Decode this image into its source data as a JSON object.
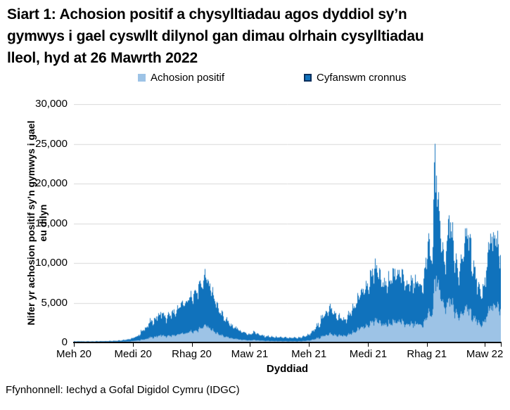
{
  "title": "Siart 1: Achosion positif a chysylltiadau agos dyddiol sy’n gymwys i gael cyswllt dilynol gan dimau olrhain cysylltiadau lleol, hyd at 26 Mawrth 2022",
  "title_lines": [
    "Siart 1: Achosion positif a chysylltiadau agos dyddiol sy’n",
    "gymwys i gael cyswllt dilynol gan dimau olrhain cysylltiadau",
    "lleol, hyd at 26 Mawrth 2022"
  ],
  "source": "Ffynhonnell: Iechyd a Gofal Digidol Cymru (IDGC)",
  "chart_data": {
    "type": "area",
    "title": "Siart 1: Achosion positif a chysylltiadau agos dyddiol sy’n gymwys i gael cyswllt dilynol gan dimau olrhain cysylltiadau lleol, hyd at 26 Mawrth 2022",
    "xlabel": "Dyddiad",
    "ylabel": "Nifer yr achosion positif sy’n gymwys i gael eu dilyn",
    "ylabel_lines": [
      "Nifer yr achosion positif sy’n gymwys i gael",
      "eu dilyn"
    ],
    "ylim": [
      0,
      30000
    ],
    "ytick_step": 5000,
    "yticks": [
      "0",
      "5,000",
      "10,000",
      "15,000",
      "20,000",
      "25,000",
      "30,000"
    ],
    "grid": true,
    "grid_color": "#D9D9D9",
    "axis_color": "#000000",
    "legend_position": "top",
    "total_days": 663,
    "x_start": "Meh 20",
    "x_end": "26 Mawrth 2022",
    "xticks": [
      {
        "label": "Meh 20",
        "day": 0
      },
      {
        "label": "Medi 20",
        "day": 92
      },
      {
        "label": "Rhag 20",
        "day": 183
      },
      {
        "label": "Maw 21",
        "day": 273
      },
      {
        "label": "Meh 21",
        "day": 365
      },
      {
        "label": "Medi 21",
        "day": 457
      },
      {
        "label": "Rhag 21",
        "day": 548
      },
      {
        "label": "Maw 22",
        "day": 638
      },
      {
        "label": "",
        "day": 663
      }
    ],
    "series": [
      {
        "name": "Cyfanswm cronnus",
        "color": "#1072BC",
        "border": "#0A2F5C",
        "role": "total"
      },
      {
        "name": "Achosion positif",
        "color": "#9DC3E6",
        "role": "positive-cases"
      }
    ],
    "anchors_format": [
      "day_index_from_1_Meh_2020",
      "cyfanswm_cronnus",
      "achosion_positif"
    ],
    "anchors": [
      [
        0,
        150,
        50
      ],
      [
        14,
        130,
        45
      ],
      [
        30,
        140,
        50
      ],
      [
        45,
        160,
        55
      ],
      [
        61,
        200,
        70
      ],
      [
        75,
        280,
        95
      ],
      [
        85,
        400,
        130
      ],
      [
        92,
        550,
        180
      ],
      [
        99,
        800,
        250
      ],
      [
        106,
        1400,
        350
      ],
      [
        113,
        1900,
        460
      ],
      [
        120,
        2600,
        620
      ],
      [
        127,
        2900,
        700
      ],
      [
        134,
        3500,
        850
      ],
      [
        137,
        3700,
        900
      ],
      [
        141,
        3300,
        800
      ],
      [
        145,
        3000,
        750
      ],
      [
        150,
        3400,
        820
      ],
      [
        155,
        3700,
        880
      ],
      [
        160,
        4100,
        960
      ],
      [
        165,
        4400,
        1020
      ],
      [
        170,
        4700,
        1090
      ],
      [
        175,
        5000,
        1160
      ],
      [
        179,
        5300,
        1240
      ],
      [
        183,
        5700,
        1350
      ],
      [
        190,
        6500,
        1550
      ],
      [
        197,
        7400,
        1800
      ],
      [
        202,
        7800,
        2000
      ],
      [
        206,
        7900,
        2050
      ],
      [
        211,
        7100,
        1800
      ],
      [
        215,
        6300,
        1550
      ],
      [
        218,
        5500,
        1350
      ],
      [
        225,
        4300,
        1050
      ],
      [
        232,
        3300,
        820
      ],
      [
        239,
        2700,
        670
      ],
      [
        246,
        2100,
        520
      ],
      [
        253,
        1700,
        420
      ],
      [
        260,
        1400,
        350
      ],
      [
        267,
        1200,
        300
      ],
      [
        274,
        1000,
        260
      ],
      [
        281,
        1400,
        330
      ],
      [
        288,
        950,
        240
      ],
      [
        295,
        820,
        210
      ],
      [
        309,
        700,
        175
      ],
      [
        323,
        620,
        155
      ],
      [
        337,
        560,
        140
      ],
      [
        351,
        620,
        155
      ],
      [
        358,
        750,
        190
      ],
      [
        365,
        950,
        240
      ],
      [
        372,
        1400,
        350
      ],
      [
        379,
        2100,
        530
      ],
      [
        386,
        3000,
        750
      ],
      [
        393,
        3900,
        980
      ],
      [
        400,
        4200,
        1050
      ],
      [
        407,
        3500,
        930
      ],
      [
        414,
        3000,
        850
      ],
      [
        421,
        2900,
        860
      ],
      [
        428,
        3400,
        1000
      ],
      [
        435,
        4300,
        1280
      ],
      [
        442,
        5300,
        1580
      ],
      [
        449,
        6300,
        1900
      ],
      [
        456,
        7100,
        2150
      ],
      [
        463,
        8300,
        2500
      ],
      [
        470,
        9300,
        2800
      ],
      [
        477,
        7900,
        2400
      ],
      [
        484,
        7200,
        2200
      ],
      [
        491,
        7700,
        2330
      ],
      [
        498,
        8300,
        2500
      ],
      [
        505,
        8600,
        2600
      ],
      [
        512,
        7900,
        2400
      ],
      [
        519,
        7300,
        2250
      ],
      [
        526,
        7800,
        2400
      ],
      [
        533,
        7400,
        2300
      ],
      [
        540,
        7200,
        2250
      ],
      [
        547,
        9000,
        2800
      ],
      [
        551,
        12700,
        3700
      ],
      [
        555,
        10400,
        3300
      ],
      [
        558,
        12000,
        4200
      ],
      [
        560,
        18000,
        6200
      ],
      [
        562,
        25000,
        8000
      ],
      [
        564,
        21000,
        8400
      ],
      [
        566,
        18000,
        7500
      ],
      [
        569,
        15300,
        6600
      ],
      [
        573,
        11500,
        5200
      ],
      [
        577,
        9800,
        4300
      ],
      [
        581,
        13500,
        5000
      ],
      [
        584,
        16000,
        5600
      ],
      [
        588,
        13200,
        4700
      ],
      [
        593,
        10000,
        3700
      ],
      [
        598,
        8200,
        3100
      ],
      [
        603,
        10500,
        3600
      ],
      [
        608,
        12500,
        4100
      ],
      [
        613,
        13500,
        4200
      ],
      [
        618,
        11500,
        3700
      ],
      [
        623,
        9500,
        3100
      ],
      [
        628,
        7000,
        2500
      ],
      [
        633,
        5800,
        2100
      ],
      [
        638,
        7200,
        2600
      ],
      [
        643,
        9500,
        3300
      ],
      [
        648,
        13700,
        4600
      ],
      [
        651,
        11500,
        4000
      ],
      [
        655,
        13500,
        4700
      ],
      [
        658,
        12000,
        4400
      ],
      [
        663,
        11000,
        4200
      ]
    ]
  }
}
